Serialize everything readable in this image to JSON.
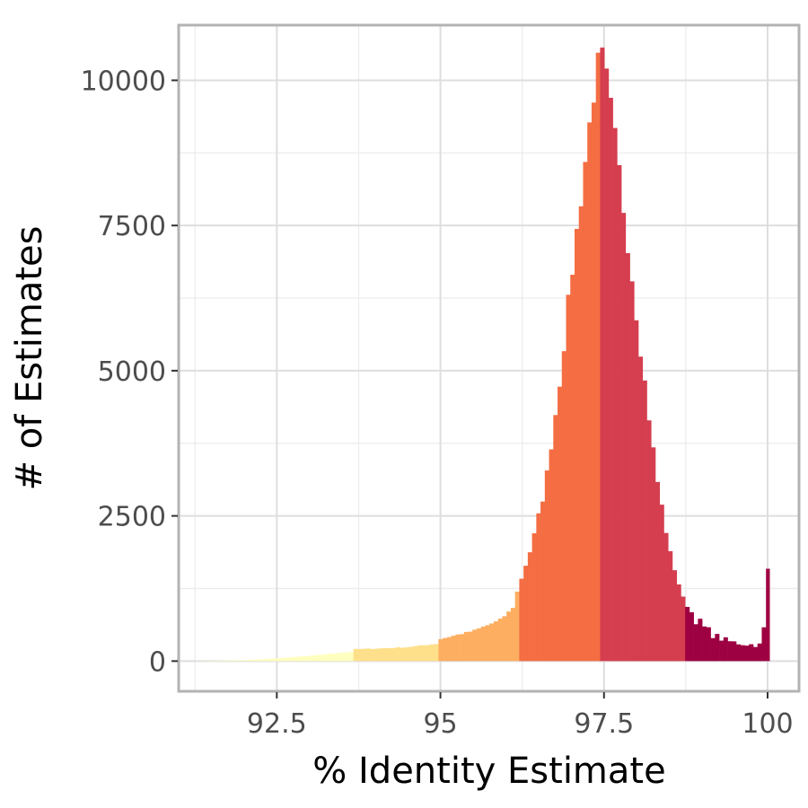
{
  "chart_data": {
    "type": "bar",
    "title": "",
    "xlabel": "% Identity Estimate",
    "ylabel": "# of Estimates",
    "xlim": [
      91.0,
      100.48
    ],
    "ylim": [
      -520,
      10950
    ],
    "x_ticks": [
      92.5,
      95,
      97.5,
      100
    ],
    "x_tick_labels": [
      "92.5",
      "95",
      "97.5",
      "100"
    ],
    "y_ticks": [
      0,
      2500,
      5000,
      7500,
      10000
    ],
    "y_tick_labels": [
      "0",
      "2500",
      "5000",
      "7500",
      "10000"
    ],
    "grid": true,
    "legend": "none",
    "bin_width": 0.065,
    "bin_groups": [
      {
        "color": "#ffffbf",
        "range": [
          91.2,
          93.65
        ]
      },
      {
        "color": "#fee08b",
        "range": [
          93.65,
          94.95
        ]
      },
      {
        "color": "#fdae61",
        "range": [
          94.95,
          96.2
        ]
      },
      {
        "color": "#f46d43",
        "range": [
          96.2,
          97.45
        ]
      },
      {
        "color": "#d53e4f",
        "range": [
          97.45,
          98.75
        ]
      },
      {
        "color": "#9e0142",
        "range": [
          98.75,
          100.03
        ]
      }
    ],
    "anchor_points": [
      [
        91.2,
        0
      ],
      [
        92.0,
        15
      ],
      [
        92.5,
        45
      ],
      [
        93.0,
        90
      ],
      [
        93.5,
        145
      ],
      [
        93.65,
        160
      ],
      [
        93.7,
        205
      ],
      [
        94.0,
        215
      ],
      [
        94.5,
        240
      ],
      [
        94.95,
        300
      ],
      [
        95.0,
        380
      ],
      [
        95.5,
        520
      ],
      [
        95.9,
        700
      ],
      [
        96.1,
        900
      ],
      [
        96.2,
        1300
      ],
      [
        96.4,
        2000
      ],
      [
        96.6,
        3000
      ],
      [
        96.8,
        4600
      ],
      [
        97.0,
        6600
      ],
      [
        97.2,
        8500
      ],
      [
        97.35,
        9900
      ],
      [
        97.45,
        10450
      ],
      [
        97.55,
        9900
      ],
      [
        97.7,
        8700
      ],
      [
        97.9,
        6900
      ],
      [
        98.1,
        5000
      ],
      [
        98.3,
        3200
      ],
      [
        98.5,
        1900
      ],
      [
        98.7,
        1100
      ],
      [
        98.8,
        900
      ],
      [
        99.0,
        600
      ],
      [
        99.2,
        430
      ],
      [
        99.4,
        340
      ],
      [
        99.6,
        300
      ],
      [
        99.8,
        280
      ],
      [
        99.93,
        280
      ],
      [
        99.99,
        1570
      ],
      [
        100.03,
        1570
      ]
    ]
  }
}
